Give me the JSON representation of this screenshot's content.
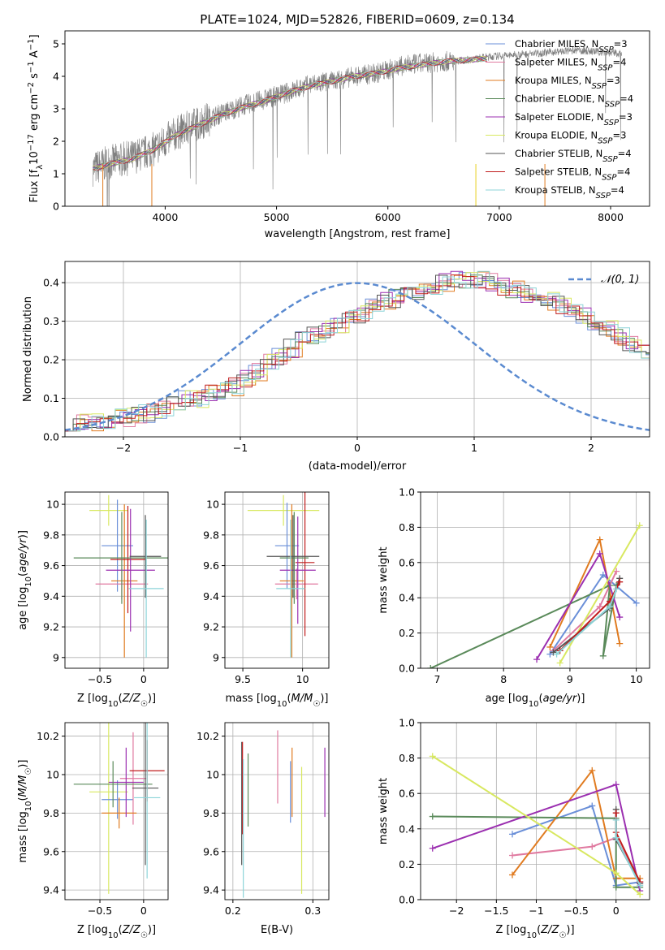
{
  "figure_title": "PLATE=1024, MJD=52826, FIBERID=0609, z=0.134",
  "colors": {
    "gray": "#7f7f7f",
    "c0": "#6a8fd8",
    "c1": "#e07aa0",
    "c2": "#e07b20",
    "c3": "#5a8a5a",
    "c4": "#9b2fb0",
    "c5": "#d8e860",
    "c6": "#555555",
    "c7": "#c01c1c",
    "c8": "#8cd4d8"
  },
  "chart_data": [
    {
      "id": "spectrum",
      "type": "line",
      "xlabel": "wavelength [Angstrom, rest frame]",
      "ylabel": "Flux [f_λ 10^-17 erg cm^-2 s^-1 A^-1]",
      "xlim": [
        3100,
        8350
      ],
      "ylim": [
        0,
        5.4
      ],
      "xticks": [
        4000,
        5000,
        6000,
        7000,
        8000
      ],
      "yticks": [
        0,
        1,
        2,
        3,
        4,
        5
      ],
      "grid": false,
      "legend_position": "upper right",
      "data_spectrum_x": [
        3350,
        3500,
        3700,
        3900,
        4100,
        4300,
        4500,
        4700,
        4900,
        5100,
        5300,
        5500,
        5700,
        5900,
        6100,
        6300,
        6500,
        6700,
        6900,
        7100,
        7300,
        7500,
        7700,
        7900,
        8100
      ],
      "data_spectrum_y": [
        1.15,
        1.35,
        1.5,
        1.75,
        2.25,
        2.55,
        2.85,
        3.1,
        3.3,
        3.5,
        3.75,
        3.85,
        4.0,
        4.1,
        4.3,
        4.4,
        4.45,
        4.5,
        4.6,
        4.65,
        4.7,
        4.75,
        4.8,
        4.75,
        4.7
      ],
      "model_x": [
        3350,
        3500,
        3700,
        3900,
        4100,
        4300,
        4500,
        4700,
        4900,
        5100,
        5300,
        5500,
        5700,
        5900,
        6100,
        6300,
        6500,
        6700,
        6900
      ],
      "model_y": [
        1.15,
        1.3,
        1.45,
        1.75,
        2.2,
        2.5,
        2.8,
        3.05,
        3.25,
        3.5,
        3.7,
        3.85,
        4.0,
        4.1,
        4.25,
        4.35,
        4.45,
        4.5,
        4.55
      ],
      "series": [
        {
          "name": "Chabrier MILES, N_SSP=3",
          "color": "#6a8fd8"
        },
        {
          "name": "Salpeter MILES, N_SSP=4",
          "color": "#e07aa0"
        },
        {
          "name": "Kroupa MILES, N_SSP=3",
          "color": "#e07b20"
        },
        {
          "name": "Chabrier ELODIE, N_SSP=4",
          "color": "#5a8a5a"
        },
        {
          "name": "Salpeter ELODIE, N_SSP=3",
          "color": "#9b2fb0"
        },
        {
          "name": "Kroupa ELODIE, N_SSP=3",
          "color": "#d8e860"
        },
        {
          "name": "Chabrier STELIB, N_SSP=4",
          "color": "#555555"
        },
        {
          "name": "Salpeter STELIB, N_SSP=4",
          "color": "#c01c1c"
        },
        {
          "name": "Kroupa STELIB, N_SSP=4",
          "color": "#8cd4d8"
        }
      ]
    },
    {
      "id": "histogram",
      "type": "line",
      "xlabel": "(data-model)/error",
      "ylabel": "Normed distribution",
      "xlim": [
        -2.5,
        2.5
      ],
      "ylim": [
        0,
        0.455
      ],
      "xticks": [
        -2,
        -1,
        0,
        1,
        2
      ],
      "yticks": [
        0.0,
        0.1,
        0.2,
        0.3,
        0.4
      ],
      "grid": true,
      "legend_position": "upper right",
      "gaussian_label": "𝒩(0, 1)",
      "bin_width": 0.1,
      "base_heights": [
        0.04,
        0.04,
        0.04,
        0.04,
        0.05,
        0.05,
        0.06,
        0.06,
        0.07,
        0.08,
        0.1,
        0.1,
        0.11,
        0.12,
        0.13,
        0.15,
        0.17,
        0.19,
        0.21,
        0.23,
        0.25,
        0.26,
        0.28,
        0.29,
        0.31,
        0.32,
        0.34,
        0.35,
        0.36,
        0.37,
        0.38,
        0.39,
        0.4,
        0.41,
        0.41,
        0.41,
        0.4,
        0.39,
        0.38,
        0.37,
        0.36,
        0.35,
        0.34,
        0.32,
        0.31,
        0.29,
        0.28,
        0.26,
        0.24,
        0.22,
        0.2,
        0.18,
        0.16,
        0.14,
        0.12,
        0.11,
        0.1,
        0.08,
        0.07,
        0.06,
        0.06,
        0.05,
        0.04,
        0.04,
        0.03,
        0.03
      ]
    },
    {
      "id": "age_vs_Z",
      "type": "scatter",
      "xlabel": "Z [log10(Z/Z☉)]",
      "ylabel": "age [log10(age/yr)]",
      "xlim": [
        -0.9,
        0.28
      ],
      "ylim": [
        8.93,
        10.08
      ],
      "xticks": [
        -0.5,
        0.0
      ],
      "yticks": [
        9.0,
        9.2,
        9.4,
        9.6,
        9.8,
        10.0
      ],
      "grid": true,
      "errorbars": [
        {
          "x": -0.4,
          "y": 9.96,
          "xerr": 0.22,
          "yerr": 0.1,
          "color": "#d8e860"
        },
        {
          "x": -0.3,
          "y": 9.73,
          "xerr": 0.18,
          "yerr": 0.3,
          "color": "#6a8fd8"
        },
        {
          "x": -0.25,
          "y": 9.48,
          "xerr": 0.3,
          "yerr": 0.1,
          "color": "#e07aa0"
        },
        {
          "x": -0.22,
          "y": 9.5,
          "xerr": 0.15,
          "yerr": 0.5,
          "color": "#e07b20"
        },
        {
          "x": -0.18,
          "y": 9.64,
          "xerr": 0.2,
          "yerr": 0.35,
          "color": "#c01c1c"
        },
        {
          "x": -0.15,
          "y": 9.57,
          "xerr": 0.28,
          "yerr": 0.4,
          "color": "#9b2fb0"
        },
        {
          "x": -0.25,
          "y": 9.65,
          "xerr": 0.55,
          "yerr": 0.3,
          "color": "#5a8a5a"
        },
        {
          "x": 0.02,
          "y": 9.66,
          "xerr": 0.18,
          "yerr": 0.27,
          "color": "#555555"
        },
        {
          "x": 0.03,
          "y": 9.45,
          "xerr": 0.2,
          "yerr": 0.45,
          "color": "#8cd4d8"
        }
      ]
    },
    {
      "id": "age_vs_mass",
      "type": "scatter",
      "xlabel": "mass [log10(M/M☉)]",
      "ylabel": "",
      "xlim": [
        9.35,
        10.22
      ],
      "ylim": [
        8.93,
        10.08
      ],
      "xticks": [
        9.5,
        10.0
      ],
      "yticks": [
        9.0,
        9.2,
        9.4,
        9.6,
        9.8,
        10.0
      ],
      "grid": true,
      "errorbars": [
        {
          "x": 9.84,
          "y": 9.96,
          "xerr": 0.3,
          "yerr": 0.1,
          "color": "#d8e860"
        },
        {
          "x": 9.87,
          "y": 9.73,
          "xerr": 0.1,
          "yerr": 0.28,
          "color": "#6a8fd8"
        },
        {
          "x": 9.95,
          "y": 9.48,
          "xerr": 0.18,
          "yerr": 0.1,
          "color": "#e07aa0"
        },
        {
          "x": 9.91,
          "y": 9.5,
          "xerr": 0.1,
          "yerr": 0.5,
          "color": "#e07b20"
        },
        {
          "x": 10.02,
          "y": 9.62,
          "xerr": 0.08,
          "yerr": 0.48,
          "color": "#c01c1c"
        },
        {
          "x": 9.96,
          "y": 9.57,
          "xerr": 0.15,
          "yerr": 0.35,
          "color": "#9b2fb0"
        },
        {
          "x": 9.93,
          "y": 9.65,
          "xerr": 0.12,
          "yerr": 0.3,
          "color": "#5a8a5a"
        },
        {
          "x": 9.92,
          "y": 9.66,
          "xerr": 0.22,
          "yerr": 0.27,
          "color": "#555555"
        },
        {
          "x": 9.9,
          "y": 9.45,
          "xerr": 0.12,
          "yerr": 0.45,
          "color": "#8cd4d8"
        }
      ]
    },
    {
      "id": "weight_vs_age",
      "type": "line",
      "xlabel": "age [log10(age/yr)]",
      "ylabel": "mass weight",
      "xlim": [
        6.75,
        10.2
      ],
      "ylim": [
        0,
        1.0
      ],
      "xticks": [
        7,
        8,
        9,
        10
      ],
      "yticks": [
        0.0,
        0.2,
        0.4,
        0.6,
        0.8,
        1.0
      ],
      "grid": true,
      "series": [
        {
          "color": "#6a8fd8",
          "x": [
            8.7,
            9.5,
            10.0
          ],
          "y": [
            0.08,
            0.53,
            0.37
          ]
        },
        {
          "color": "#e07aa0",
          "x": [
            8.75,
            9.45,
            9.7
          ],
          "y": [
            0.1,
            0.35,
            0.55
          ]
        },
        {
          "color": "#e07b20",
          "x": [
            8.7,
            9.45,
            9.75
          ],
          "y": [
            0.12,
            0.73,
            0.14
          ]
        },
        {
          "color": "#5a8a5a",
          "x": [
            6.9,
            9.6,
            9.5,
            9.7
          ],
          "y": [
            0.0,
            0.47,
            0.07,
            0.47
          ]
        },
        {
          "color": "#9b2fb0",
          "x": [
            8.5,
            9.45,
            9.75
          ],
          "y": [
            0.05,
            0.65,
            0.29
          ]
        },
        {
          "color": "#d8e860",
          "x": [
            8.85,
            10.05
          ],
          "y": [
            0.03,
            0.81
          ]
        },
        {
          "color": "#555555",
          "x": [
            8.75,
            9.6,
            9.75
          ],
          "y": [
            0.09,
            0.34,
            0.51
          ]
        },
        {
          "color": "#c01c1c",
          "x": [
            8.85,
            9.6,
            9.75
          ],
          "y": [
            0.1,
            0.38,
            0.49
          ]
        },
        {
          "color": "#8cd4d8",
          "x": [
            8.8,
            9.6,
            9.7
          ],
          "y": [
            0.08,
            0.35,
            0.45
          ]
        }
      ]
    },
    {
      "id": "mass_vs_Z",
      "type": "scatter",
      "xlabel": "Z [log10(Z/Z☉)]",
      "ylabel": "mass [log10(M/M☉)]",
      "xlim": [
        -0.9,
        0.28
      ],
      "ylim": [
        9.35,
        10.27
      ],
      "xticks": [
        -0.5,
        0.0
      ],
      "yticks": [
        9.4,
        9.6,
        9.8,
        10.0,
        10.2
      ],
      "grid": true,
      "errorbars": [
        {
          "x": -0.4,
          "y": 9.91,
          "xerr": 0.22,
          "yerr": 0.53,
          "color": "#d8e860"
        },
        {
          "x": -0.3,
          "y": 9.87,
          "xerr": 0.18,
          "yerr": 0.1,
          "color": "#6a8fd8"
        },
        {
          "x": -0.12,
          "y": 9.98,
          "xerr": 0.15,
          "yerr": 0.24,
          "color": "#e07aa0"
        },
        {
          "x": -0.28,
          "y": 9.8,
          "xerr": 0.2,
          "yerr": 0.08,
          "color": "#e07b20"
        },
        {
          "x": 0.04,
          "y": 10.02,
          "xerr": 0.2,
          "yerr": 0.16,
          "color": "#c01c1c"
        },
        {
          "x": -0.2,
          "y": 9.96,
          "xerr": 0.2,
          "yerr": 0.18,
          "color": "#9b2fb0"
        },
        {
          "x": -0.35,
          "y": 9.95,
          "xerr": 0.45,
          "yerr": 0.12,
          "color": "#5a8a5a"
        },
        {
          "x": 0.02,
          "y": 9.93,
          "xerr": 0.15,
          "yerr": 0.4,
          "color": "#555555"
        },
        {
          "x": 0.04,
          "y": 9.88,
          "xerr": 0.15,
          "yerr": 0.42,
          "color": "#8cd4d8"
        }
      ]
    },
    {
      "id": "mass_vs_ebv",
      "type": "scatter",
      "xlabel": "E(B-V)",
      "ylabel": "",
      "xlim": [
        0.19,
        0.32
      ],
      "ylim": [
        9.35,
        10.27
      ],
      "xticks": [
        0.2,
        0.3
      ],
      "yticks": [
        9.4,
        9.6,
        9.8,
        10.0,
        10.2
      ],
      "grid": true,
      "errorbars": [
        {
          "x": 0.211,
          "y": 9.85,
          "xerr": 0,
          "yerr": 0.32,
          "color": "#555555"
        },
        {
          "x": 0.212,
          "y": 9.93,
          "xerr": 0,
          "yerr": 0.24,
          "color": "#c01c1c"
        },
        {
          "x": 0.213,
          "y": 9.72,
          "xerr": 0,
          "yerr": 0.36,
          "color": "#8cd4d8"
        },
        {
          "x": 0.219,
          "y": 9.92,
          "xerr": 0,
          "yerr": 0.19,
          "color": "#5a8a5a"
        },
        {
          "x": 0.256,
          "y": 10.04,
          "xerr": 0,
          "yerr": 0.19,
          "color": "#e07aa0"
        },
        {
          "x": 0.272,
          "y": 9.91,
          "xerr": 0,
          "yerr": 0.16,
          "color": "#6a8fd8"
        },
        {
          "x": 0.274,
          "y": 9.96,
          "xerr": 0,
          "yerr": 0.18,
          "color": "#e07b20"
        },
        {
          "x": 0.286,
          "y": 9.71,
          "xerr": 0,
          "yerr": 0.33,
          "color": "#d8e860"
        },
        {
          "x": 0.315,
          "y": 9.96,
          "xerr": 0,
          "yerr": 0.18,
          "color": "#9b2fb0"
        }
      ]
    },
    {
      "id": "weight_vs_Z",
      "type": "line",
      "xlabel": "Z [log10(Z/Z☉)]",
      "ylabel": "mass weight",
      "xlim": [
        -2.45,
        0.42
      ],
      "ylim": [
        0,
        1.0
      ],
      "xticks": [
        -2.0,
        -1.5,
        -1.0,
        -0.5,
        0.0
      ],
      "yticks": [
        0.0,
        0.2,
        0.4,
        0.6,
        0.8,
        1.0
      ],
      "grid": true,
      "series": [
        {
          "color": "#6a8fd8",
          "x": [
            -1.3,
            -0.3,
            0.0,
            0.3
          ],
          "y": [
            0.37,
            0.53,
            0.08,
            0.1
          ]
        },
        {
          "color": "#e07aa0",
          "x": [
            -1.3,
            -0.3,
            0.0,
            0.3
          ],
          "y": [
            0.25,
            0.3,
            0.35,
            0.1
          ]
        },
        {
          "color": "#e07b20",
          "x": [
            -1.3,
            -0.3,
            0.0,
            0.3
          ],
          "y": [
            0.14,
            0.73,
            0.12,
            0.12
          ]
        },
        {
          "color": "#5a8a5a",
          "x": [
            -2.3,
            0.0,
            0.0,
            0.3
          ],
          "y": [
            0.47,
            0.46,
            0.07,
            0.07
          ]
        },
        {
          "color": "#9b2fb0",
          "x": [
            -2.3,
            0.0,
            0.3
          ],
          "y": [
            0.29,
            0.65,
            0.05
          ]
        },
        {
          "color": "#d8e860",
          "x": [
            -2.3,
            0.0,
            0.3
          ],
          "y": [
            0.81,
            0.15,
            0.03
          ]
        },
        {
          "color": "#555555",
          "x": [
            0.0,
            0.0,
            0.3
          ],
          "y": [
            0.51,
            0.34,
            0.09
          ]
        },
        {
          "color": "#c01c1c",
          "x": [
            0.0,
            0.0,
            0.3
          ],
          "y": [
            0.49,
            0.38,
            0.1
          ]
        },
        {
          "color": "#8cd4d8",
          "x": [
            0.0,
            0.0,
            0.3
          ],
          "y": [
            0.45,
            0.35,
            0.08
          ]
        }
      ]
    }
  ]
}
